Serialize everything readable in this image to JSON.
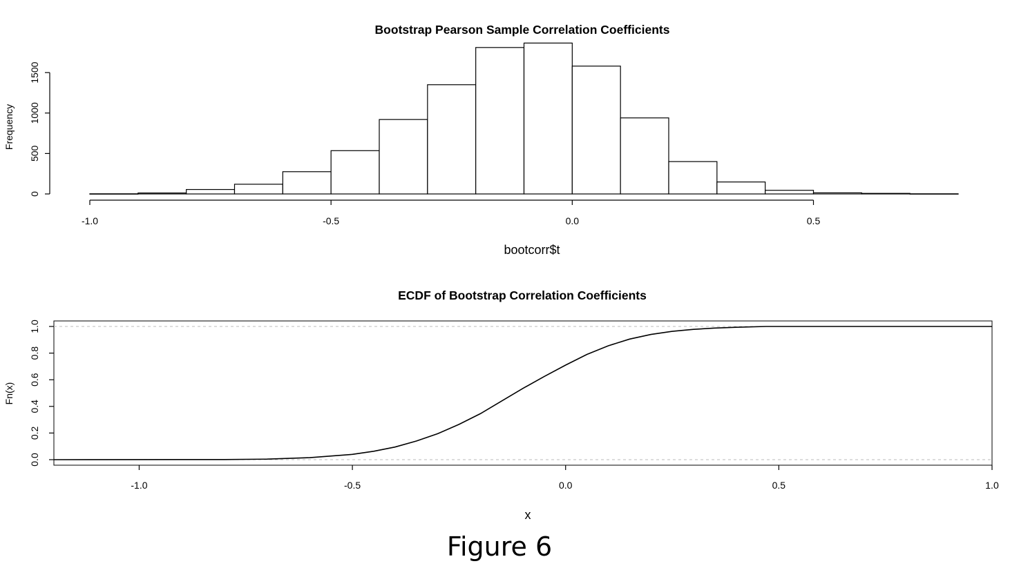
{
  "figure_caption": "Figure 6",
  "chart_data": [
    {
      "type": "bar",
      "title": "Bootstrap Pearson Sample Correlation Coefficients",
      "xlabel": "bootcorr$t",
      "ylabel": "Frequency",
      "xlim": [
        -1.0,
        0.8
      ],
      "ylim": [
        0,
        1800
      ],
      "x_ticks": [
        -1.0,
        -0.5,
        0.0,
        0.5
      ],
      "x_tick_labels": [
        "-1.0",
        "-0.5",
        "0.0",
        "0.5"
      ],
      "y_ticks": [
        0,
        500,
        1000,
        1500
      ],
      "y_tick_labels": [
        "0",
        "500",
        "1000",
        "1500"
      ],
      "bin_edges": [
        -1.0,
        -0.9,
        -0.8,
        -0.7,
        -0.6,
        -0.5,
        -0.4,
        -0.3,
        -0.2,
        -0.1,
        0.0,
        0.1,
        0.2,
        0.3,
        0.4,
        0.5,
        0.6,
        0.7,
        0.8
      ],
      "values": [
        2,
        12,
        55,
        120,
        275,
        535,
        920,
        1350,
        1810,
        1865,
        1580,
        940,
        400,
        148,
        45,
        14,
        7,
        2
      ],
      "bar_fill": "#ffffff",
      "bar_stroke": "#000000",
      "grid": false
    },
    {
      "type": "line",
      "title": "ECDF of Bootstrap Correlation Coefficients",
      "xlabel": "x",
      "ylabel": "Fn(x)",
      "xlim": [
        -1.2,
        1.0
      ],
      "ylim": [
        0.0,
        1.0
      ],
      "x_ticks": [
        -1.0,
        -0.5,
        0.0,
        0.5,
        1.0
      ],
      "x_tick_labels": [
        "-1.0",
        "-0.5",
        "0.0",
        "0.5",
        "1.0"
      ],
      "y_ticks": [
        0.0,
        0.2,
        0.4,
        0.6,
        0.8,
        1.0
      ],
      "y_tick_labels": [
        "0.0",
        "0.2",
        "0.4",
        "0.6",
        "0.8",
        "1.0"
      ],
      "x": [
        -1.2,
        -0.8,
        -0.7,
        -0.6,
        -0.5,
        -0.45,
        -0.4,
        -0.35,
        -0.3,
        -0.25,
        -0.2,
        -0.15,
        -0.1,
        -0.05,
        0.0,
        0.05,
        0.1,
        0.15,
        0.2,
        0.25,
        0.3,
        0.35,
        0.4,
        0.47,
        1.0
      ],
      "y": [
        0.0,
        0.001,
        0.004,
        0.015,
        0.04,
        0.063,
        0.095,
        0.14,
        0.195,
        0.265,
        0.345,
        0.44,
        0.535,
        0.625,
        0.71,
        0.79,
        0.855,
        0.905,
        0.94,
        0.963,
        0.978,
        0.988,
        0.994,
        1.0,
        1.0
      ],
      "reference_lines_y": [
        0.0,
        1.0
      ],
      "reference_line_color": "#bbbbbb",
      "grid": false
    }
  ]
}
